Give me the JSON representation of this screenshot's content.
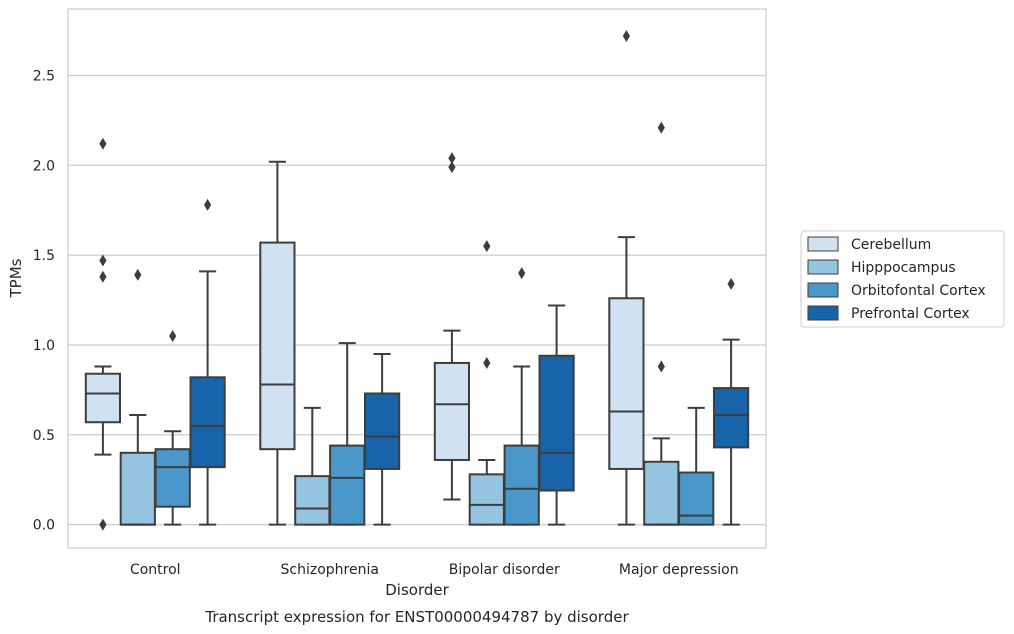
{
  "chart_data": {
    "type": "box",
    "title": "",
    "caption": "Transcript expression for ENST00000494787 by disorder",
    "xlabel": "Disorder",
    "ylabel": "TPMs",
    "ylim": [
      -0.13,
      2.87
    ],
    "yticks": [
      0.0,
      0.5,
      1.0,
      1.5,
      2.0,
      2.5
    ],
    "ytick_labels": [
      "0.0",
      "0.5",
      "1.0",
      "1.5",
      "2.0",
      "2.5"
    ],
    "grid": "horizontal",
    "legend_position": "right",
    "categories": [
      "Control",
      "Schizophrenia",
      "Bipolar disorder",
      "Major depression"
    ],
    "series": [
      {
        "name": "Cerebellum",
        "color": "#d0e1f2",
        "boxes": [
          {
            "min": 0.39,
            "q1": 0.57,
            "median": 0.73,
            "q3": 0.84,
            "max": 0.88,
            "outliers": [
              2.12,
              1.47,
              1.38,
              0.0
            ]
          },
          {
            "min": 0.0,
            "q1": 0.42,
            "median": 0.78,
            "q3": 1.57,
            "max": 2.02,
            "outliers": []
          },
          {
            "min": 0.14,
            "q1": 0.36,
            "median": 0.67,
            "q3": 0.9,
            "max": 1.08,
            "outliers": [
              2.04,
              1.99
            ]
          },
          {
            "min": 0.0,
            "q1": 0.31,
            "median": 0.63,
            "q3": 1.26,
            "max": 1.6,
            "outliers": [
              2.72
            ]
          }
        ]
      },
      {
        "name": "Hipppocampus",
        "color": "#94c4df",
        "boxes": [
          {
            "min": 0.0,
            "q1": 0.0,
            "median": 0.0,
            "q3": 0.4,
            "max": 0.61,
            "outliers": [
              1.39
            ]
          },
          {
            "min": 0.0,
            "q1": 0.0,
            "median": 0.09,
            "q3": 0.27,
            "max": 0.65,
            "outliers": []
          },
          {
            "min": 0.0,
            "q1": 0.0,
            "median": 0.11,
            "q3": 0.28,
            "max": 0.36,
            "outliers": [
              1.55,
              0.9
            ]
          },
          {
            "min": 0.0,
            "q1": 0.0,
            "median": 0.0,
            "q3": 0.35,
            "max": 0.48,
            "outliers": [
              2.21,
              0.88
            ]
          }
        ]
      },
      {
        "name": "Orbitofontal Cortex",
        "color": "#4a98c9",
        "boxes": [
          {
            "min": 0.0,
            "q1": 0.1,
            "median": 0.32,
            "q3": 0.42,
            "max": 0.52,
            "outliers": [
              1.05
            ]
          },
          {
            "min": 0.0,
            "q1": 0.0,
            "median": 0.26,
            "q3": 0.44,
            "max": 1.01,
            "outliers": []
          },
          {
            "min": 0.0,
            "q1": 0.0,
            "median": 0.2,
            "q3": 0.44,
            "max": 0.88,
            "outliers": [
              1.4
            ]
          },
          {
            "min": 0.0,
            "q1": 0.0,
            "median": 0.05,
            "q3": 0.29,
            "max": 0.65,
            "outliers": []
          }
        ]
      },
      {
        "name": "Prefrontal Cortex",
        "color": "#1764ab",
        "boxes": [
          {
            "min": 0.0,
            "q1": 0.32,
            "median": 0.55,
            "q3": 0.82,
            "max": 1.41,
            "outliers": [
              1.78
            ]
          },
          {
            "min": 0.0,
            "q1": 0.31,
            "median": 0.49,
            "q3": 0.73,
            "max": 0.95,
            "outliers": []
          },
          {
            "min": 0.0,
            "q1": 0.19,
            "median": 0.4,
            "q3": 0.94,
            "max": 1.22,
            "outliers": []
          },
          {
            "min": 0.0,
            "q1": 0.43,
            "median": 0.61,
            "q3": 0.76,
            "max": 1.03,
            "outliers": [
              1.34
            ]
          }
        ]
      }
    ]
  }
}
